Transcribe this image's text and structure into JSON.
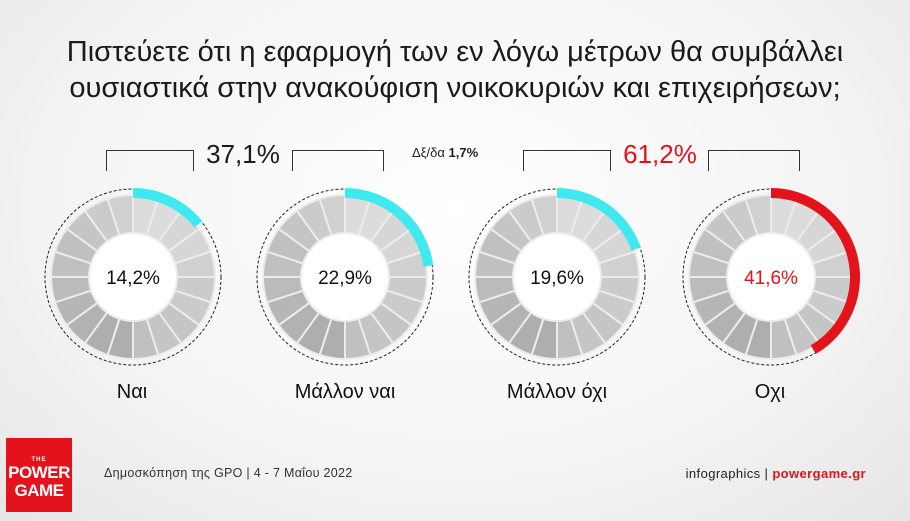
{
  "title": {
    "line1": "Πιστεύετε ότι η εφαρμογή των εν λόγω μέτρων θα συμβάλλει",
    "line2": "ουσιαστικά στην ανακούφιση νοικοκυριών και επιχειρήσεων;"
  },
  "groups": {
    "positive": "37,1%",
    "negative": "61,2%"
  },
  "error_note": {
    "label": "Δξ/δα",
    "value": "1,7%"
  },
  "colors": {
    "accent_cyan": "#3fe9ef",
    "accent_red": "#e3121b",
    "ring_gray": "#c8c8c8"
  },
  "chart_data": {
    "type": "pie",
    "categories": [
      "Ναι",
      "Μάλλον ναι",
      "Μάλλον όχι",
      "Οχι"
    ],
    "values": [
      14.2,
      22.9,
      19.6,
      41.6
    ],
    "labels": [
      "14,2%",
      "22,9%",
      "19,6%",
      "41,6%"
    ],
    "highlight_colors": [
      "#3fe9ef",
      "#3fe9ef",
      "#3fe9ef",
      "#e3121b"
    ]
  },
  "footer": {
    "source": "Δημοσκόπηση της GPO | 4 - 7 Μαΐου 2022",
    "credit": "infographics |",
    "brand": "powergame.gr"
  },
  "logo": {
    "the": "THE",
    "line1": "POWER",
    "line2": "GAME"
  }
}
